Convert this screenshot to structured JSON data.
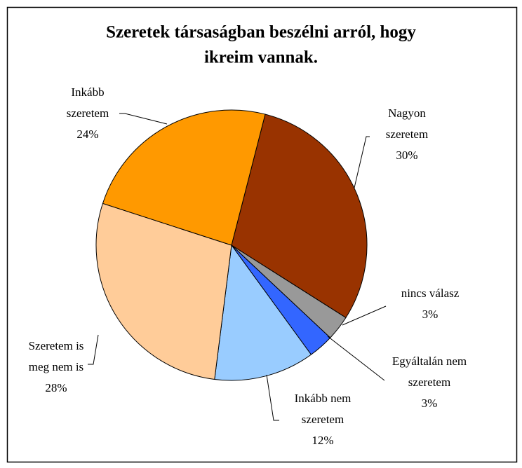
{
  "chart_data": {
    "type": "pie",
    "title": [
      "Szeretek társaságban beszélni arról, hogy",
      "ikreim vannak."
    ],
    "categories": [
      [
        "Nagyon",
        "szeretem"
      ],
      [
        "nincs válasz"
      ],
      [
        "Egyáltalán nem",
        "szeretem"
      ],
      [
        "Inkább nem",
        "szeretem"
      ],
      [
        "Szeretem is",
        "meg nem is"
      ],
      [
        "Inkább",
        "szeretem"
      ]
    ],
    "values": [
      30,
      3,
      3,
      12,
      28,
      24
    ],
    "value_labels": [
      "30%",
      "3%",
      "3%",
      "12%",
      "28%",
      "24%"
    ],
    "colors": [
      "#993300",
      "#999999",
      "#3366ff",
      "#99ccff",
      "#ffcc99",
      "#ff9900"
    ]
  }
}
